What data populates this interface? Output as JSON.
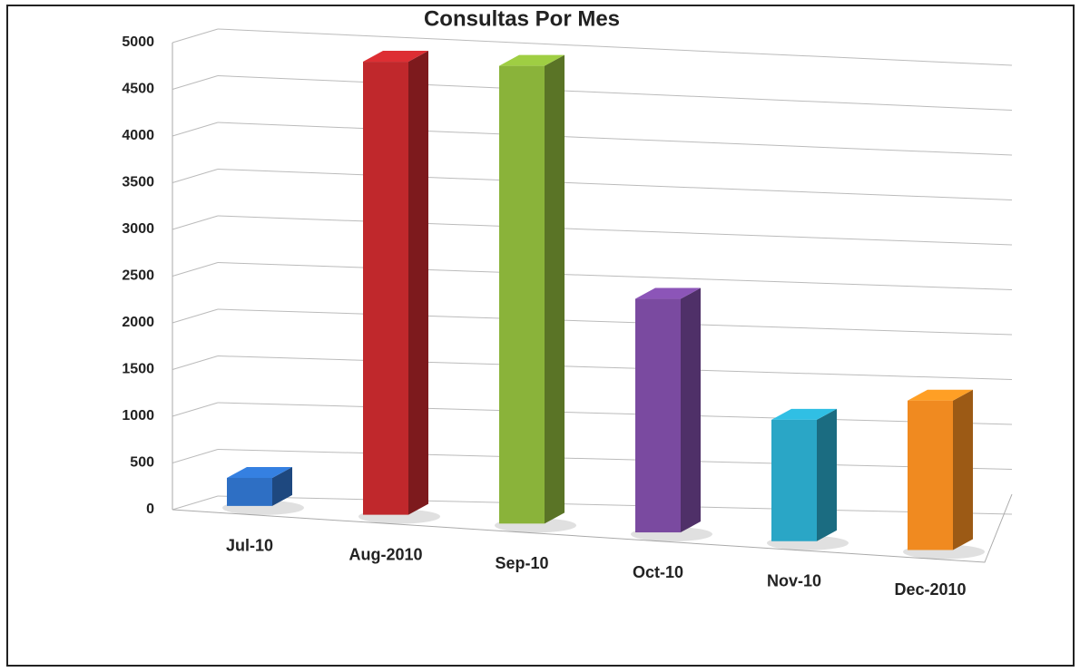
{
  "chart_data": {
    "type": "bar3d",
    "title": "Consultas Por Mes",
    "categories": [
      "Jul-10",
      "Aug-2010",
      "Sep-10",
      "Oct-10",
      "Nov-10",
      "Dec-2010"
    ],
    "values": [
      300,
      4850,
      4900,
      2500,
      1300,
      1600
    ],
    "colors": [
      "#2e6fc4",
      "#c0282c",
      "#8ab33a",
      "#7a4aa0",
      "#2aa6c6",
      "#f08a20"
    ],
    "ylim": [
      0,
      5000
    ],
    "yticks": [
      0,
      500,
      1000,
      1500,
      2000,
      2500,
      3000,
      3500,
      4000,
      4500,
      5000
    ],
    "grid": true
  }
}
